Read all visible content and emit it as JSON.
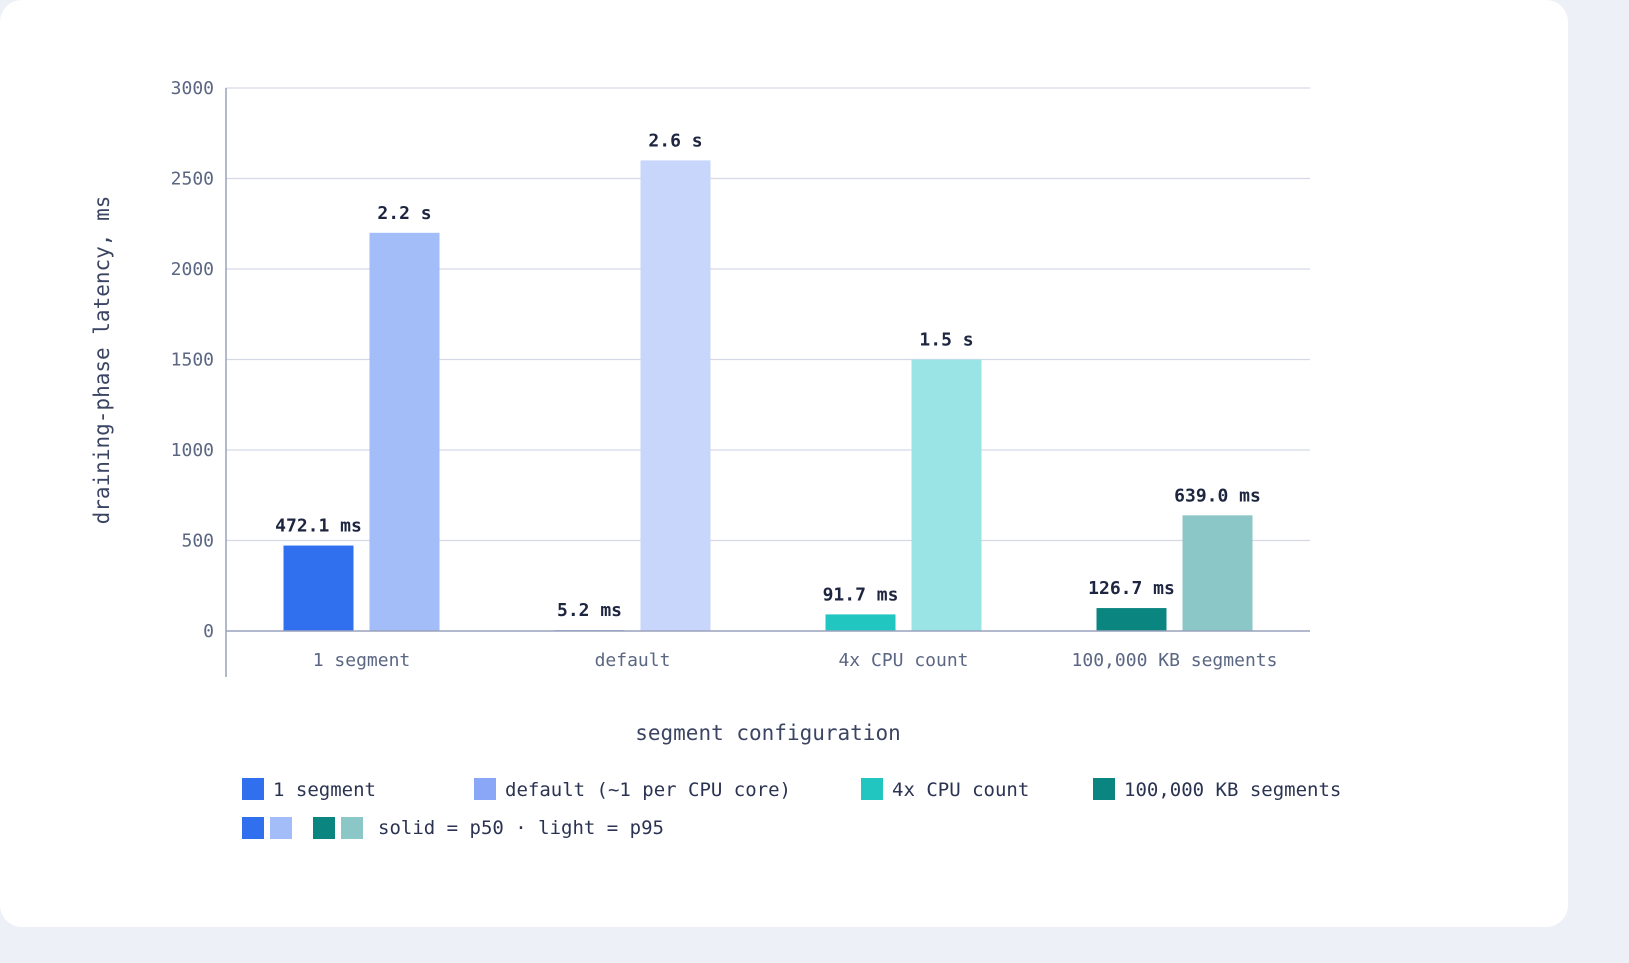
{
  "chart_data": {
    "type": "bar",
    "xlabel": "segment configuration",
    "ylabel": "draining-phase latency, ms",
    "ylim": [
      0,
      3000
    ],
    "yticks": [
      0,
      500,
      1000,
      1500,
      2000,
      2500,
      3000
    ],
    "grid": true,
    "categories": [
      "1 segment",
      "default",
      "4x CPU count",
      "100,000 KB segments"
    ],
    "series": [
      {
        "name": "solid = p50",
        "values": [
          472.1,
          5.2,
          91.7,
          126.7
        ],
        "labels": [
          "472.1 ms",
          "5.2 ms",
          "91.7 ms",
          "126.7 ms"
        ]
      },
      {
        "name": "light = p95",
        "values": [
          2200,
          2600,
          1500,
          639.0
        ],
        "labels": [
          "2.2 s",
          "2.6 s",
          "1.5 s",
          "639.0 ms"
        ]
      }
    ],
    "colors": {
      "p50": [
        "#3070ef",
        "#8aa7f7",
        "#22c6c0",
        "#0b8580"
      ],
      "p95": [
        "#a2bdf7",
        "#c8d6fc",
        "#9be4e5",
        "#8ac7c6"
      ]
    },
    "legend": {
      "items": [
        {
          "label": "1 segment",
          "color": "#3070ef"
        },
        {
          "label": "default (~1 per CPU core)",
          "color": "#8aa7f7"
        },
        {
          "label": "4x CPU count",
          "color": "#22c6c0"
        },
        {
          "label": "100,000 KB segments",
          "color": "#0b8580"
        }
      ],
      "note": "solid = p50 · light = p95",
      "note_swatches": [
        "#3070ef",
        "#a2bdf7",
        "#0b8580",
        "#8ac7c6"
      ],
      "placement": "bottom"
    }
  }
}
